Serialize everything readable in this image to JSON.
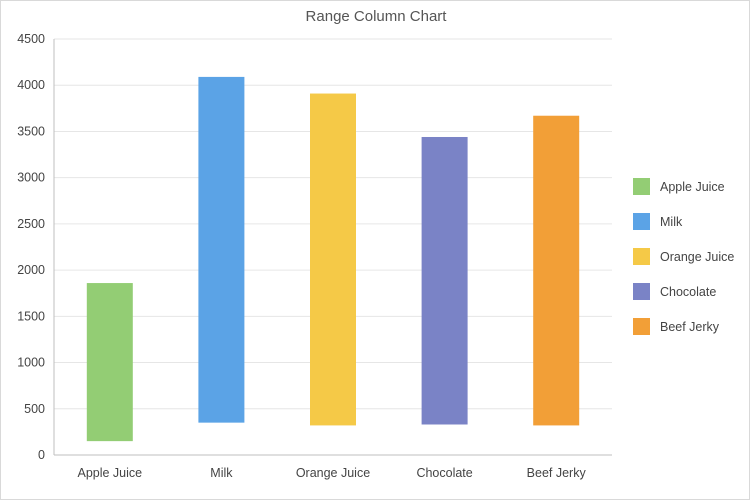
{
  "chart_data": {
    "type": "bar",
    "title": "Range Column Chart",
    "xlabel": "",
    "ylabel": "",
    "categories": [
      "Apple Juice",
      "Milk",
      "Orange Juice",
      "Chocolate",
      "Beef Jerky"
    ],
    "low": [
      150,
      350,
      320,
      330,
      320
    ],
    "high": [
      1860,
      4090,
      3910,
      3440,
      3670
    ],
    "colors": [
      "#93cd74",
      "#5ba3e6",
      "#f5c947",
      "#7a83c6",
      "#f29f37"
    ],
    "ylim": [
      0,
      4500
    ],
    "yticks": [
      0,
      500,
      1000,
      1500,
      2000,
      2500,
      3000,
      3500,
      4000,
      4500
    ],
    "grid": true,
    "legend": {
      "position": "right",
      "entries": [
        "Apple Juice",
        "Milk",
        "Orange Juice",
        "Chocolate",
        "Beef Jerky"
      ]
    }
  }
}
